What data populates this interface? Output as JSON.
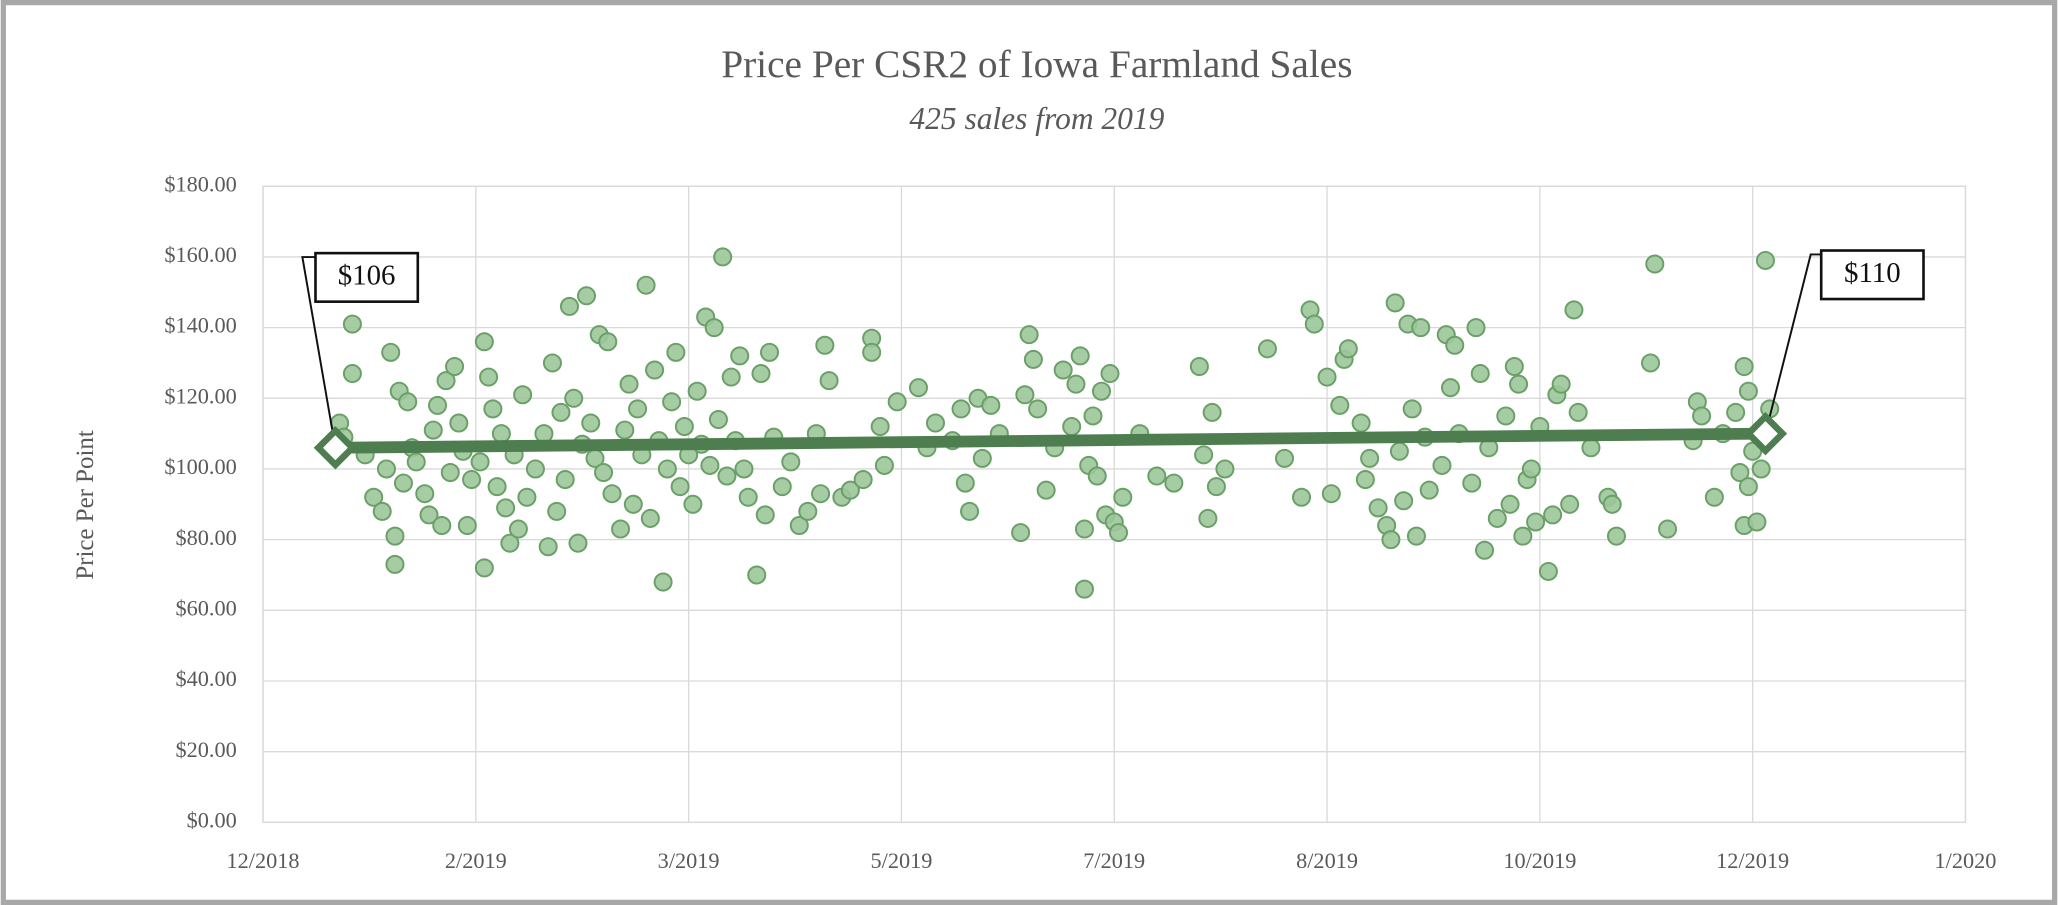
{
  "chart_data": {
    "type": "scatter",
    "title": "Price Per CSR2 of Iowa Farmland Sales",
    "subtitle": "425 sales from 2019",
    "y_label": "Price Per Point",
    "color": "#9cc79a",
    "edge_color": "#6a9f68",
    "grid": true,
    "xlim": [
      43454,
      43854
    ],
    "xticks": [
      {
        "value": 43454,
        "label": "12/2018"
      },
      {
        "value": 43504,
        "label": "2/2019"
      },
      {
        "value": 43554,
        "label": "3/2019"
      },
      {
        "value": 43604,
        "label": "5/2019"
      },
      {
        "value": 43654,
        "label": "7/2019"
      },
      {
        "value": 43704,
        "label": "8/2019"
      },
      {
        "value": 43754,
        "label": "10/2019"
      },
      {
        "value": 43804,
        "label": "12/2019"
      },
      {
        "value": 43854,
        "label": "1/2020"
      }
    ],
    "ylim": [
      0,
      180
    ],
    "yticks": [
      {
        "value": 0,
        "label": "$0.00"
      },
      {
        "value": 20,
        "label": "$20.00"
      },
      {
        "value": 40,
        "label": "$40.00"
      },
      {
        "value": 60,
        "label": "$60.00"
      },
      {
        "value": 80,
        "label": "$80.00"
      },
      {
        "value": 100,
        "label": "$100.00"
      },
      {
        "value": 120,
        "label": "$120.00"
      },
      {
        "value": 140,
        "label": "$140.00"
      },
      {
        "value": 160,
        "label": "$160.00"
      },
      {
        "value": 180,
        "label": "$180.00"
      }
    ],
    "x": [
      43472,
      43473,
      43475,
      43475,
      43478,
      43480,
      43482,
      43483,
      43484,
      43485,
      43485,
      43486,
      43487,
      43488,
      43489,
      43490,
      43492,
      43493,
      43494,
      43495,
      43496,
      43497,
      43498,
      43499,
      43500,
      43501,
      43502,
      43503,
      43505,
      43506,
      43506,
      43507,
      43508,
      43509,
      43510,
      43511,
      43512,
      43513,
      43514,
      43515,
      43516,
      43518,
      43520,
      43521,
      43522,
      43523,
      43524,
      43525,
      43526,
      43527,
      43528,
      43529,
      43530,
      43531,
      43532,
      43533,
      43534,
      43535,
      43536,
      43538,
      43539,
      43540,
      43541,
      43542,
      43543,
      43544,
      43545,
      43546,
      43547,
      43548,
      43549,
      43550,
      43551,
      43552,
      43553,
      43554,
      43555,
      43556,
      43557,
      43558,
      43559,
      43560,
      43561,
      43562,
      43563,
      43564,
      43565,
      43566,
      43567,
      43568,
      43570,
      43571,
      43572,
      43573,
      43574,
      43576,
      43578,
      43580,
      43582,
      43584,
      43585,
      43586,
      43587,
      43590,
      43592,
      43595,
      43597,
      43597,
      43599,
      43600,
      43603,
      43608,
      43610,
      43612,
      43616,
      43618,
      43619,
      43620,
      43622,
      43623,
      43625,
      43627,
      43632,
      43633,
      43634,
      43635,
      43636,
      43638,
      43640,
      43642,
      43644,
      43645,
      43646,
      43647,
      43647,
      43648,
      43649,
      43650,
      43651,
      43652,
      43653,
      43654,
      43655,
      43656,
      43660,
      43664,
      43668,
      43674,
      43675,
      43676,
      43677,
      43678,
      43680,
      43690,
      43694,
      43698,
      43700,
      43701,
      43704,
      43705,
      43707,
      43708,
      43709,
      43712,
      43713,
      43714,
      43716,
      43718,
      43719,
      43720,
      43721,
      43722,
      43723,
      43724,
      43725,
      43726,
      43727,
      43728,
      43731,
      43732,
      43733,
      43734,
      43735,
      43738,
      43739,
      43740,
      43741,
      43742,
      43744,
      43746,
      43747,
      43748,
      43749,
      43750,
      43751,
      43752,
      43753,
      43754,
      43756,
      43757,
      43758,
      43759,
      43761,
      43762,
      43763,
      43766,
      43770,
      43771,
      43772,
      43780,
      43781,
      43784,
      43790,
      43791,
      43792,
      43795,
      43797,
      43800,
      43801,
      43802,
      43802,
      43803,
      43803,
      43804,
      43805,
      43806,
      43807,
      43808
    ],
    "values": [
      113,
      109,
      141,
      127,
      104,
      92,
      88,
      100,
      133,
      81,
      73,
      122,
      96,
      119,
      106,
      102,
      93,
      87,
      111,
      118,
      84,
      125,
      99,
      129,
      113,
      105,
      84,
      97,
      102,
      136,
      72,
      126,
      117,
      95,
      110,
      89,
      79,
      104,
      83,
      121,
      92,
      100,
      110,
      78,
      130,
      88,
      116,
      97,
      146,
      120,
      79,
      107,
      149,
      113,
      103,
      138,
      99,
      136,
      93,
      83,
      111,
      124,
      90,
      117,
      104,
      152,
      86,
      128,
      108,
      68,
      100,
      119,
      133,
      95,
      112,
      104,
      90,
      122,
      107,
      143,
      101,
      140,
      114,
      160,
      98,
      126,
      108,
      132,
      100,
      92,
      70,
      127,
      87,
      133,
      109,
      95,
      102,
      84,
      88,
      110,
      93,
      135,
      125,
      92,
      94,
      97,
      137,
      133,
      112,
      101,
      119,
      123,
      106,
      113,
      108,
      117,
      96,
      88,
      120,
      103,
      118,
      110,
      82,
      121,
      138,
      131,
      117,
      94,
      106,
      128,
      112,
      124,
      132,
      66,
      83,
      101,
      115,
      98,
      122,
      87,
      127,
      85,
      82,
      92,
      110,
      98,
      96,
      129,
      104,
      86,
      116,
      95,
      100,
      134,
      103,
      92,
      145,
      141,
      126,
      93,
      118,
      131,
      134,
      113,
      97,
      103,
      89,
      84,
      80,
      147,
      105,
      91,
      141,
      117,
      81,
      140,
      109,
      94,
      101,
      138,
      123,
      135,
      110,
      96,
      140,
      127,
      77,
      106,
      86,
      115,
      90,
      129,
      124,
      81,
      97,
      100,
      85,
      112,
      71,
      87,
      121,
      124,
      90,
      145,
      116,
      106,
      92,
      90,
      81,
      130,
      158,
      83,
      108,
      119,
      115,
      92,
      110,
      116,
      99,
      84,
      129,
      122,
      95,
      105,
      85,
      100,
      159,
      117
    ],
    "trendline": {
      "x": [
        43471,
        43807
      ],
      "values": [
        106,
        110
      ],
      "value_labels": [
        "$106",
        "$110"
      ],
      "color": "#4e7d50"
    }
  }
}
